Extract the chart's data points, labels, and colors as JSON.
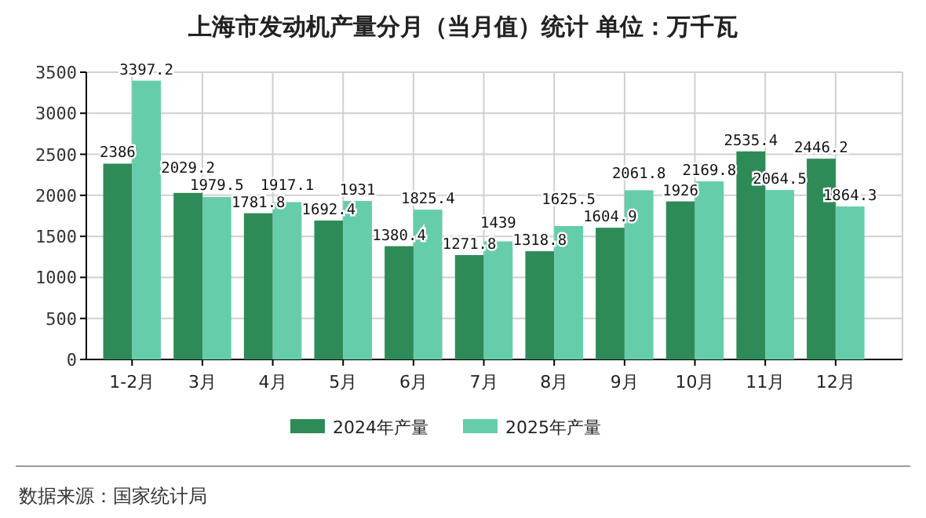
{
  "chart_data": {
    "type": "bar",
    "title": "上海市发动机产量分月（当月值）统计  单位：万千瓦",
    "categories": [
      "1-2月",
      "3月",
      "4月",
      "5月",
      "6月",
      "7月",
      "8月",
      "9月",
      "10月",
      "11月",
      "12月"
    ],
    "series": [
      {
        "name": "2024年产量",
        "color": "#2e8b57",
        "values": [
          2386,
          2029.2,
          1781.8,
          1692.4,
          1380.4,
          1271.8,
          1318.8,
          1604.9,
          1926,
          2535.4,
          2446.2
        ]
      },
      {
        "name": "2025年产量",
        "color": "#66cdaa",
        "values": [
          3397.2,
          1979.5,
          1917.1,
          1931,
          1825.4,
          1439,
          1625.5,
          2061.8,
          2169.8,
          2064.5,
          1864.3
        ]
      }
    ],
    "ylim": [
      0,
      3500
    ],
    "yticks": [
      0,
      500,
      1000,
      1500,
      2000,
      2500,
      3000,
      3500
    ],
    "grid": true,
    "legend": "bottom",
    "data_labels": true,
    "annotations": [
      "数据来源：国家统计局"
    ]
  }
}
